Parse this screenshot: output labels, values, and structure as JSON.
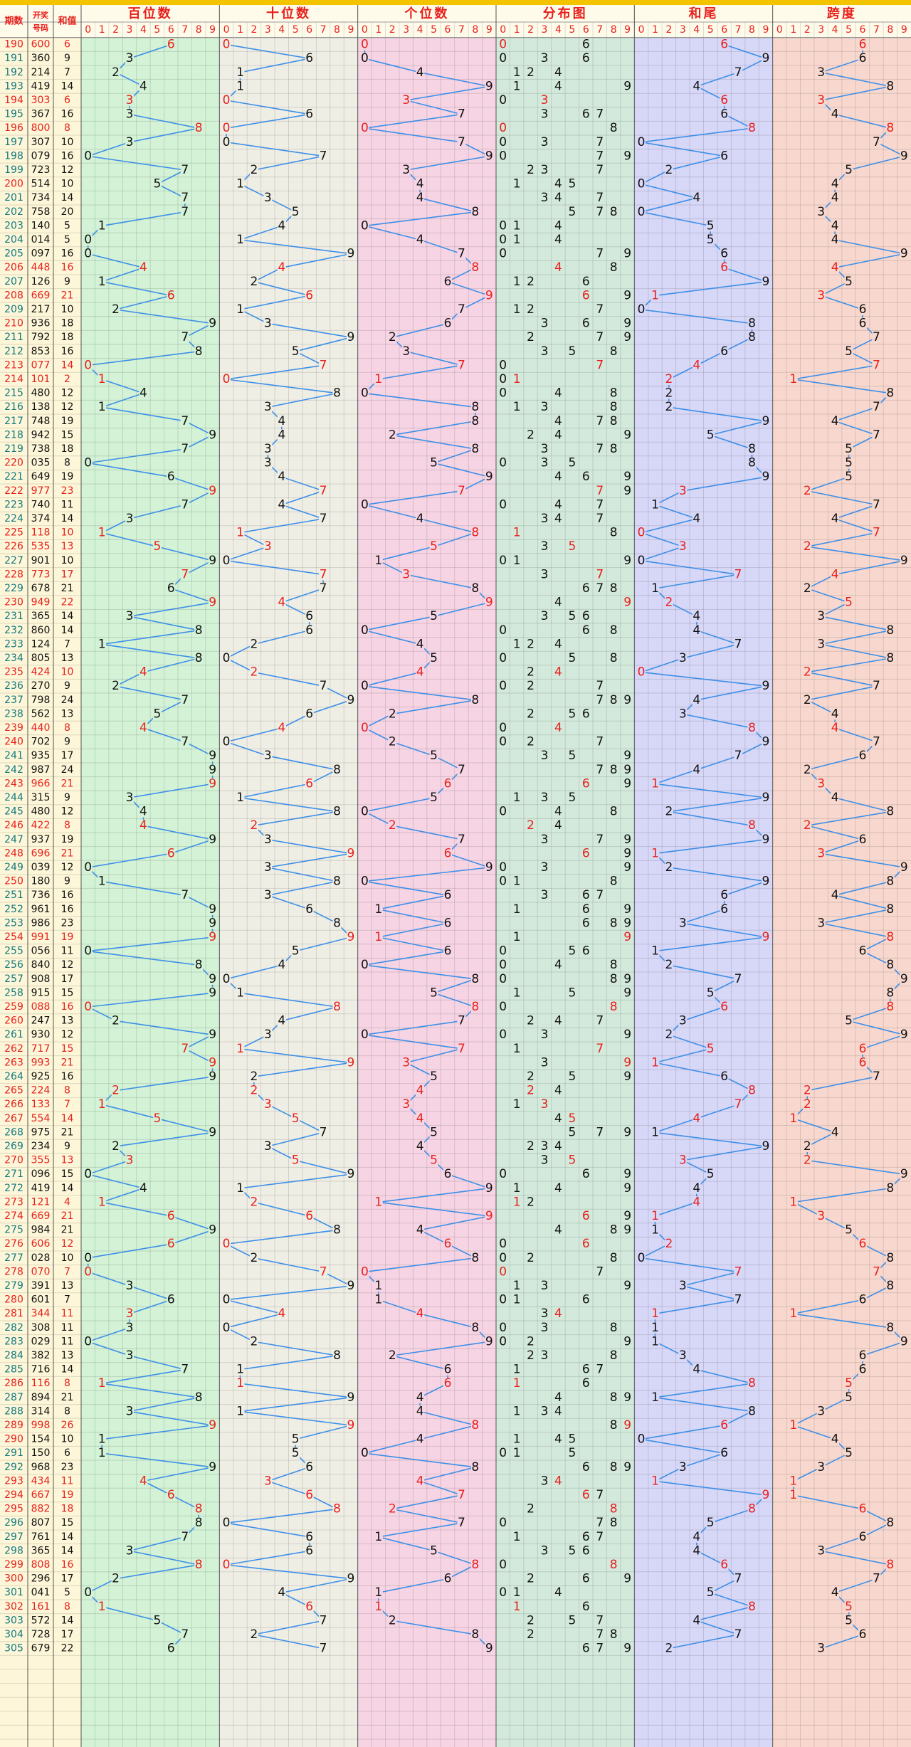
{
  "header": {
    "period": "期数",
    "number": [
      "开奖",
      "号码"
    ],
    "sum": "和值"
  },
  "sections": [
    {
      "title": "百位数",
      "ticks": [
        0,
        1,
        2,
        3,
        4,
        5,
        6,
        7,
        8,
        9
      ]
    },
    {
      "title": "十位数",
      "ticks": [
        0,
        1,
        2,
        3,
        4,
        5,
        6,
        7,
        8,
        9
      ]
    },
    {
      "title": "个位数",
      "ticks": [
        0,
        1,
        2,
        3,
        4,
        5,
        6,
        7,
        8,
        9
      ]
    },
    {
      "title": "分布图",
      "ticks": [
        0,
        1,
        2,
        3,
        4,
        5,
        6,
        7,
        8,
        9
      ]
    },
    {
      "title": "和尾",
      "ticks": [
        0,
        1,
        2,
        3,
        4,
        5,
        6,
        7,
        8,
        9
      ]
    },
    {
      "title": "跨度",
      "ticks": [
        0,
        1,
        2,
        3,
        4,
        5,
        6,
        7,
        8,
        9
      ]
    }
  ],
  "rows": [
    [
      190,
      "600",
      6,
      6,
      0,
      0,
      [
        0,
        6
      ],
      6,
      6,
      2
    ],
    [
      191,
      "360",
      9,
      3,
      6,
      0,
      [
        0,
        3,
        6
      ],
      9,
      6,
      0
    ],
    [
      192,
      "214",
      7,
      2,
      1,
      4,
      [
        1,
        2,
        4
      ],
      7,
      3,
      0
    ],
    [
      193,
      "419",
      14,
      4,
      1,
      9,
      [
        1,
        4,
        9
      ],
      4,
      8,
      0
    ],
    [
      194,
      "303",
      6,
      3,
      0,
      3,
      [
        0,
        3
      ],
      6,
      3,
      2
    ],
    [
      195,
      "367",
      16,
      3,
      6,
      7,
      [
        3,
        6,
        7
      ],
      6,
      4,
      0
    ],
    [
      196,
      "800",
      8,
      8,
      0,
      0,
      [
        0,
        8
      ],
      8,
      8,
      2
    ],
    [
      197,
      "307",
      10,
      3,
      0,
      7,
      [
        0,
        3,
        7
      ],
      0,
      7,
      0
    ],
    [
      198,
      "079",
      16,
      0,
      7,
      9,
      [
        0,
        7,
        9
      ],
      6,
      9,
      0
    ],
    [
      199,
      "723",
      12,
      7,
      2,
      3,
      [
        2,
        3,
        7
      ],
      2,
      5,
      0
    ],
    [
      200,
      "514",
      10,
      5,
      1,
      4,
      [
        1,
        4,
        5
      ],
      0,
      4,
      1
    ],
    [
      201,
      "734",
      14,
      7,
      3,
      4,
      [
        3,
        4,
        7
      ],
      4,
      4,
      0
    ],
    [
      202,
      "758",
      20,
      7,
      5,
      8,
      [
        5,
        7,
        8
      ],
      0,
      3,
      0
    ],
    [
      203,
      "140",
      5,
      1,
      4,
      0,
      [
        0,
        1,
        4
      ],
      5,
      4,
      0
    ],
    [
      204,
      "014",
      5,
      0,
      1,
      4,
      [
        0,
        1,
        4
      ],
      5,
      4,
      0
    ],
    [
      205,
      "097",
      16,
      0,
      9,
      7,
      [
        0,
        7,
        9
      ],
      6,
      9,
      0
    ],
    [
      206,
      "448",
      16,
      4,
      4,
      8,
      [
        4,
        8
      ],
      6,
      4,
      2
    ],
    [
      207,
      "126",
      9,
      1,
      2,
      6,
      [
        1,
        2,
        6
      ],
      9,
      5,
      0
    ],
    [
      208,
      "669",
      21,
      6,
      6,
      9,
      [
        6,
        9
      ],
      1,
      3,
      2
    ],
    [
      209,
      "217",
      10,
      2,
      1,
      7,
      [
        1,
        2,
        7
      ],
      0,
      6,
      0
    ],
    [
      210,
      "936",
      18,
      9,
      3,
      6,
      [
        3,
        6,
        9
      ],
      8,
      6,
      1
    ],
    [
      211,
      "792",
      18,
      7,
      9,
      2,
      [
        2,
        7,
        9
      ],
      8,
      7,
      0
    ],
    [
      212,
      "853",
      16,
      8,
      5,
      3,
      [
        3,
        5,
        8
      ],
      6,
      5,
      0
    ],
    [
      213,
      "077",
      14,
      0,
      7,
      7,
      [
        0,
        7
      ],
      4,
      7,
      2
    ],
    [
      214,
      "101",
      2,
      1,
      0,
      1,
      [
        0,
        1
      ],
      2,
      1,
      2
    ],
    [
      215,
      "480",
      12,
      4,
      8,
      0,
      [
        0,
        4,
        8
      ],
      2,
      8,
      0
    ],
    [
      216,
      "138",
      12,
      1,
      3,
      8,
      [
        1,
        3,
        8
      ],
      2,
      7,
      0
    ],
    [
      217,
      "748",
      19,
      7,
      4,
      8,
      [
        4,
        7,
        8
      ],
      9,
      4,
      0
    ],
    [
      218,
      "942",
      15,
      9,
      4,
      2,
      [
        2,
        4,
        9
      ],
      5,
      7,
      0
    ],
    [
      219,
      "738",
      18,
      7,
      3,
      8,
      [
        3,
        7,
        8
      ],
      8,
      5,
      0
    ],
    [
      220,
      "035",
      8,
      0,
      3,
      5,
      [
        0,
        3,
        5
      ],
      8,
      5,
      1
    ],
    [
      221,
      "649",
      19,
      6,
      4,
      9,
      [
        4,
        6,
        9
      ],
      9,
      5,
      0
    ],
    [
      222,
      "977",
      23,
      9,
      7,
      7,
      [
        7,
        9
      ],
      3,
      2,
      2
    ],
    [
      223,
      "740",
      11,
      7,
      4,
      0,
      [
        0,
        4,
        7
      ],
      1,
      7,
      0
    ],
    [
      224,
      "374",
      14,
      3,
      7,
      4,
      [
        3,
        4,
        7
      ],
      4,
      4,
      0
    ],
    [
      225,
      "118",
      10,
      1,
      1,
      8,
      [
        1,
        8
      ],
      0,
      7,
      2
    ],
    [
      226,
      "535",
      13,
      5,
      3,
      5,
      [
        3,
        5
      ],
      3,
      2,
      2
    ],
    [
      227,
      "901",
      10,
      9,
      0,
      1,
      [
        0,
        1,
        9
      ],
      0,
      9,
      0
    ],
    [
      228,
      "773",
      17,
      7,
      7,
      3,
      [
        3,
        7
      ],
      7,
      4,
      2
    ],
    [
      229,
      "678",
      21,
      6,
      7,
      8,
      [
        6,
        7,
        8
      ],
      1,
      2,
      0
    ],
    [
      230,
      "949",
      22,
      9,
      4,
      9,
      [
        4,
        9
      ],
      2,
      5,
      2
    ],
    [
      231,
      "365",
      14,
      3,
      6,
      5,
      [
        3,
        5,
        6
      ],
      4,
      3,
      0
    ],
    [
      232,
      "860",
      14,
      8,
      6,
      0,
      [
        0,
        6,
        8
      ],
      4,
      8,
      0
    ],
    [
      233,
      "124",
      7,
      1,
      2,
      4,
      [
        1,
        2,
        4
      ],
      7,
      3,
      0
    ],
    [
      234,
      "805",
      13,
      8,
      0,
      5,
      [
        0,
        5,
        8
      ],
      3,
      8,
      0
    ],
    [
      235,
      "424",
      10,
      4,
      2,
      4,
      [
        2,
        4
      ],
      0,
      2,
      2
    ],
    [
      236,
      "270",
      9,
      2,
      7,
      0,
      [
        0,
        2,
        7
      ],
      9,
      7,
      0
    ],
    [
      237,
      "798",
      24,
      7,
      9,
      8,
      [
        7,
        8,
        9
      ],
      4,
      2,
      0
    ],
    [
      238,
      "562",
      13,
      5,
      6,
      2,
      [
        2,
        5,
        6
      ],
      3,
      4,
      0
    ],
    [
      239,
      "440",
      8,
      4,
      4,
      0,
      [
        0,
        4
      ],
      8,
      4,
      2
    ],
    [
      240,
      "702",
      9,
      7,
      0,
      2,
      [
        0,
        2,
        7
      ],
      9,
      7,
      1
    ],
    [
      241,
      "935",
      17,
      9,
      3,
      5,
      [
        3,
        5,
        9
      ],
      7,
      6,
      0
    ],
    [
      242,
      "987",
      24,
      9,
      8,
      7,
      [
        7,
        8,
        9
      ],
      4,
      2,
      0
    ],
    [
      243,
      "966",
      21,
      9,
      6,
      6,
      [
        6,
        9
      ],
      1,
      3,
      2
    ],
    [
      244,
      "315",
      9,
      3,
      1,
      5,
      [
        1,
        3,
        5
      ],
      9,
      4,
      0
    ],
    [
      245,
      "480",
      12,
      4,
      8,
      0,
      [
        0,
        4,
        8
      ],
      2,
      8,
      0
    ],
    [
      246,
      "422",
      8,
      4,
      2,
      2,
      [
        2,
        4
      ],
      8,
      2,
      2
    ],
    [
      247,
      "937",
      19,
      9,
      3,
      7,
      [
        3,
        7,
        9
      ],
      9,
      6,
      0
    ],
    [
      248,
      "696",
      21,
      6,
      9,
      6,
      [
        6,
        9
      ],
      1,
      3,
      2
    ],
    [
      249,
      "039",
      12,
      0,
      3,
      9,
      [
        0,
        3,
        9
      ],
      2,
      9,
      0
    ],
    [
      250,
      "180",
      9,
      1,
      8,
      0,
      [
        0,
        1,
        8
      ],
      9,
      8,
      1
    ],
    [
      251,
      "736",
      16,
      7,
      3,
      6,
      [
        3,
        6,
        7
      ],
      6,
      4,
      0
    ],
    [
      252,
      "961",
      16,
      9,
      6,
      1,
      [
        1,
        6,
        9
      ],
      6,
      8,
      0
    ],
    [
      253,
      "986",
      23,
      9,
      8,
      6,
      [
        6,
        8,
        9
      ],
      3,
      3,
      0
    ],
    [
      254,
      "991",
      19,
      9,
      9,
      1,
      [
        1,
        9
      ],
      9,
      8,
      2
    ],
    [
      255,
      "056",
      11,
      0,
      5,
      6,
      [
        0,
        5,
        6
      ],
      1,
      6,
      0
    ],
    [
      256,
      "840",
      12,
      8,
      4,
      0,
      [
        0,
        4,
        8
      ],
      2,
      8,
      0
    ],
    [
      257,
      "908",
      17,
      9,
      0,
      8,
      [
        0,
        8,
        9
      ],
      7,
      9,
      0
    ],
    [
      258,
      "915",
      15,
      9,
      1,
      5,
      [
        1,
        5,
        9
      ],
      5,
      8,
      0
    ],
    [
      259,
      "088",
      16,
      0,
      8,
      8,
      [
        0,
        8
      ],
      6,
      8,
      2
    ],
    [
      260,
      "247",
      13,
      2,
      4,
      7,
      [
        2,
        4,
        7
      ],
      3,
      5,
      1
    ],
    [
      261,
      "930",
      12,
      9,
      3,
      0,
      [
        0,
        3,
        9
      ],
      2,
      9,
      0
    ],
    [
      262,
      "717",
      15,
      7,
      1,
      7,
      [
        1,
        7
      ],
      5,
      6,
      2
    ],
    [
      263,
      "993",
      21,
      9,
      9,
      3,
      [
        3,
        9
      ],
      1,
      6,
      2
    ],
    [
      264,
      "925",
      16,
      9,
      2,
      5,
      [
        2,
        5,
        9
      ],
      6,
      7,
      0
    ],
    [
      265,
      "224",
      8,
      2,
      2,
      4,
      [
        2,
        4
      ],
      8,
      2,
      2
    ],
    [
      266,
      "133",
      7,
      1,
      3,
      3,
      [
        1,
        3
      ],
      7,
      2,
      2
    ],
    [
      267,
      "554",
      14,
      5,
      5,
      4,
      [
        4,
        5
      ],
      4,
      1,
      2
    ],
    [
      268,
      "975",
      21,
      9,
      7,
      5,
      [
        5,
        7,
        9
      ],
      1,
      4,
      0
    ],
    [
      269,
      "234",
      9,
      2,
      3,
      4,
      [
        2,
        3,
        4
      ],
      9,
      2,
      0
    ],
    [
      270,
      "355",
      13,
      3,
      5,
      5,
      [
        3,
        5
      ],
      3,
      2,
      2
    ],
    [
      271,
      "096",
      15,
      0,
      9,
      6,
      [
        0,
        6,
        9
      ],
      5,
      9,
      0
    ],
    [
      272,
      "419",
      14,
      4,
      1,
      9,
      [
        1,
        4,
        9
      ],
      4,
      8,
      0
    ],
    [
      273,
      "121",
      4,
      1,
      2,
      1,
      [
        1,
        2
      ],
      4,
      1,
      2
    ],
    [
      274,
      "669",
      21,
      6,
      6,
      9,
      [
        6,
        9
      ],
      1,
      3,
      2
    ],
    [
      275,
      "984",
      21,
      9,
      8,
      4,
      [
        4,
        8,
        9
      ],
      1,
      5,
      0
    ],
    [
      276,
      "606",
      12,
      6,
      0,
      6,
      [
        0,
        6
      ],
      2,
      6,
      2
    ],
    [
      277,
      "028",
      10,
      0,
      2,
      8,
      [
        0,
        2,
        8
      ],
      0,
      8,
      0
    ],
    [
      278,
      "070",
      7,
      0,
      7,
      0,
      [
        0,
        7
      ],
      7,
      7,
      2
    ],
    [
      279,
      "391",
      13,
      3,
      9,
      1,
      [
        1,
        3,
        9
      ],
      3,
      8,
      0
    ],
    [
      280,
      "601",
      7,
      6,
      0,
      1,
      [
        0,
        1,
        6
      ],
      7,
      6,
      1
    ],
    [
      281,
      "344",
      11,
      3,
      4,
      4,
      [
        3,
        4
      ],
      1,
      1,
      2
    ],
    [
      282,
      "308",
      11,
      3,
      0,
      8,
      [
        0,
        3,
        8
      ],
      1,
      8,
      0
    ],
    [
      283,
      "029",
      11,
      0,
      2,
      9,
      [
        0,
        2,
        9
      ],
      1,
      9,
      0
    ],
    [
      284,
      "382",
      13,
      3,
      8,
      2,
      [
        2,
        3,
        8
      ],
      3,
      6,
      0
    ],
    [
      285,
      "716",
      14,
      7,
      1,
      6,
      [
        1,
        6,
        7
      ],
      4,
      6,
      0
    ],
    [
      286,
      "116",
      8,
      1,
      1,
      6,
      [
        1,
        6
      ],
      8,
      5,
      2
    ],
    [
      287,
      "894",
      21,
      8,
      9,
      4,
      [
        4,
        8,
        9
      ],
      1,
      5,
      0
    ],
    [
      288,
      "314",
      8,
      3,
      1,
      4,
      [
        1,
        3,
        4
      ],
      8,
      3,
      0
    ],
    [
      289,
      "998",
      26,
      9,
      9,
      8,
      [
        8,
        9
      ],
      6,
      1,
      2
    ],
    [
      290,
      "154",
      10,
      1,
      5,
      4,
      [
        1,
        4,
        5
      ],
      0,
      4,
      1
    ],
    [
      291,
      "150",
      6,
      1,
      5,
      0,
      [
        0,
        1,
        5
      ],
      6,
      5,
      0
    ],
    [
      292,
      "968",
      23,
      9,
      6,
      8,
      [
        6,
        8,
        9
      ],
      3,
      3,
      0
    ],
    [
      293,
      "434",
      11,
      4,
      3,
      4,
      [
        3,
        4
      ],
      1,
      1,
      2
    ],
    [
      294,
      "667",
      19,
      6,
      6,
      7,
      [
        6,
        7
      ],
      9,
      1,
      2
    ],
    [
      295,
      "882",
      18,
      8,
      8,
      2,
      [
        2,
        8
      ],
      8,
      6,
      2
    ],
    [
      296,
      "807",
      15,
      8,
      0,
      7,
      [
        0,
        7,
        8
      ],
      5,
      8,
      0
    ],
    [
      297,
      "761",
      14,
      7,
      6,
      1,
      [
        1,
        6,
        7
      ],
      4,
      6,
      0
    ],
    [
      298,
      "365",
      14,
      3,
      6,
      5,
      [
        3,
        5,
        6
      ],
      4,
      3,
      0
    ],
    [
      299,
      "808",
      16,
      8,
      0,
      8,
      [
        0,
        8
      ],
      6,
      8,
      2
    ],
    [
      300,
      "296",
      17,
      2,
      9,
      6,
      [
        2,
        6,
        9
      ],
      7,
      7,
      1
    ],
    [
      301,
      "041",
      5,
      0,
      4,
      1,
      [
        0,
        1,
        4
      ],
      5,
      4,
      0
    ],
    [
      302,
      "161",
      8,
      1,
      6,
      1,
      [
        1,
        6
      ],
      8,
      5,
      2
    ],
    [
      303,
      "572",
      14,
      5,
      7,
      2,
      [
        2,
        5,
        7
      ],
      4,
      5,
      0
    ],
    [
      304,
      "728",
      17,
      7,
      2,
      8,
      [
        2,
        7,
        8
      ],
      7,
      6,
      0
    ],
    [
      305,
      "679",
      22,
      6,
      7,
      9,
      [
        6,
        7,
        9
      ],
      2,
      3,
      0
    ]
  ]
}
